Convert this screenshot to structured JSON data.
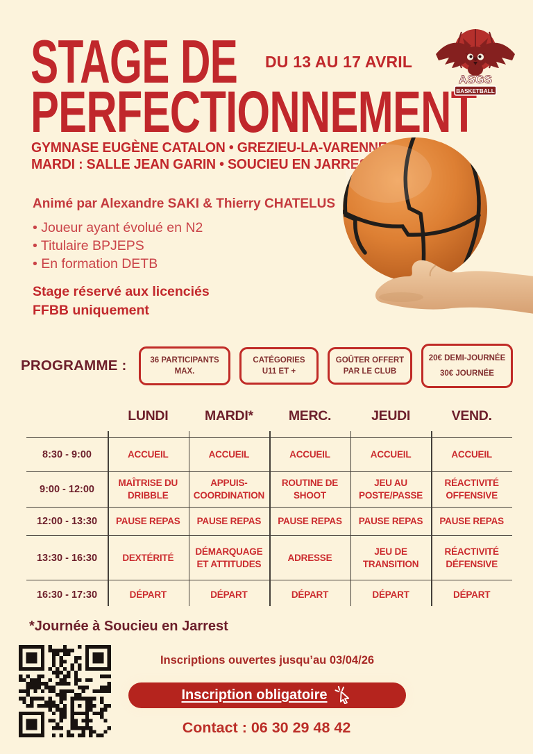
{
  "poster": {
    "title_line1": "STAGE DE",
    "title_line2": "PERFECTIONNEMENT",
    "date_range": "DU 13 AU 17 AVRIL",
    "location_line1": "GYMNASE EUGÈNE CATALON • GREZIEU-LA-VARENNE",
    "location_line2": "MARDI : SALLE JEAN GARIN • SOUCIEU EN JARREST"
  },
  "logo": {
    "club_name": "ASGS",
    "club_subtitle": "BASKETBALL"
  },
  "coaches": {
    "heading": "Animé par Alexandre SAKI  & Thierry CHATELUS",
    "bullets": [
      "Joueur ayant évolué en N2",
      "Titulaire BPJEPS",
      "En formation DETB"
    ]
  },
  "restriction": {
    "line1": "Stage réservé  aux licenciés",
    "line2": "FFBB uniquement"
  },
  "programme": {
    "label": "PROGRAMME :",
    "badges": [
      {
        "lines": [
          "36 PARTICIPANTS",
          "MAX."
        ]
      },
      {
        "lines": [
          "CATÉGORIES",
          "U11 ET +"
        ]
      },
      {
        "lines": [
          "GOÛTER OFFERT",
          "PAR LE CLUB"
        ]
      },
      {
        "lines": [
          "20€ DEMI-JOURNÉE",
          "30€ JOURNÉE"
        ]
      }
    ]
  },
  "schedule": {
    "days": [
      "LUNDI",
      "MARDI*",
      "MERC.",
      "JEUDI",
      "VEND."
    ],
    "rows": [
      {
        "time": "8:30 - 9:00",
        "cells": [
          "ACCUEIL",
          "ACCUEIL",
          "ACCUEIL",
          "ACCUEIL",
          "ACCUEIL"
        ]
      },
      {
        "time": "9:00 - 12:00",
        "cells": [
          "MAÎTRISE DU DRIBBLE",
          "APPUIS-COORDINATION",
          "ROUTINE DE SHOOT",
          "JEU AU POSTE/PASSE",
          "RÉACTIVITÉ OFFENSIVE"
        ]
      },
      {
        "time": "12:00 - 13:30",
        "cells": [
          "PAUSE REPAS",
          "PAUSE REPAS",
          "PAUSE REPAS",
          "PAUSE REPAS",
          "PAUSE REPAS"
        ]
      },
      {
        "time": "13:30 - 16:30",
        "cells": [
          "DEXTÉRITÉ",
          "DÉMARQUAGE ET ATTITUDES",
          "ADRESSE",
          "JEU DE TRANSITION",
          "RÉACTIVITÉ DÉFENSIVE"
        ]
      },
      {
        "time": "16:30 - 17:30",
        "cells": [
          "DÉPART",
          "DÉPART",
          "DÉPART",
          "DÉPART",
          "DÉPART"
        ]
      }
    ],
    "footnote": "*Journée à Soucieu en Jarrest"
  },
  "registration": {
    "deadline_text": "Inscriptions ouvertes jusqu’au 03/04/26",
    "button_label": "Inscription obligatoire",
    "contact": "Contact : 06 30 29 48 42"
  },
  "colors": {
    "background": "#fcf3dc",
    "title_red": "#c0272b",
    "dark_maroon": "#6d1f2b",
    "cell_red": "#cb2b2e",
    "badge_border": "#c02b27",
    "button_red": "#b5241e"
  }
}
